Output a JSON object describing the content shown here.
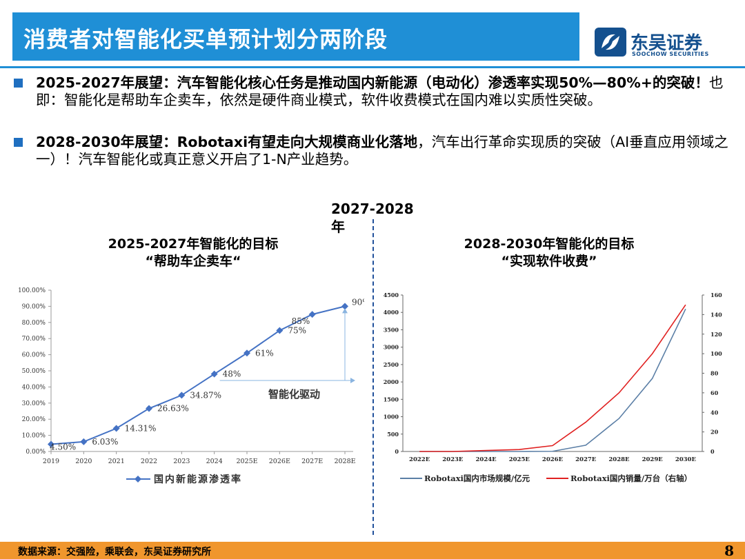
{
  "header": {
    "title": "消费者对智能化买单预计划分两阶段",
    "logo_cn": "东吴证券",
    "logo_en": "SOOCHOW SECURITIES"
  },
  "bullets": [
    {
      "bold": "2025-2027年展望：汽车智能化核心任务是推动国内新能源（电动化）渗透率实现50%—80%+的突破！",
      "normal": "也即：智能化是帮助车企卖车，依然是硬件商业模式，软件收费模式在国内难以实质性突破。"
    },
    {
      "bold": "2028-2030年展望：Robotaxi有望走向大规模商业化落地",
      "normal": "，汽车出行革命实现质的突破（AI垂直应用领域之一）！汽车智能化或真正意义开启了1-N产业趋势。"
    }
  ],
  "divider_label": "2027-2028年",
  "left_chart_title": {
    "line1": "2025-2027年智能化的目标",
    "line2": "“帮助车企卖车“"
  },
  "right_chart_title": {
    "line1": "2028-2030年智能化的目标",
    "line2": "“实现软件收费”"
  },
  "chart_data": [
    {
      "type": "line",
      "categories": [
        "2019",
        "2020",
        "2021",
        "2022",
        "2023",
        "2024",
        "2025E",
        "2026E",
        "2027E",
        "2028E"
      ],
      "series": [
        {
          "name": "国内新能源渗透率",
          "values": [
            4.5,
            6.03,
            14.31,
            26.63,
            34.87,
            48,
            61,
            75,
            85,
            90
          ],
          "color": "#4472c4"
        }
      ],
      "data_labels": [
        "4.50%",
        "6.03%",
        "14.31%",
        "26.63%",
        "34.87%",
        "48%",
        "61%",
        "75%",
        "85%",
        "90%"
      ],
      "y_ticks": [
        "0.00%",
        "10.00%",
        "20.00%",
        "30.00%",
        "40.00%",
        "50.00%",
        "60.00%",
        "70.00%",
        "80.00%",
        "90.00%",
        "100.00%"
      ],
      "ylim": [
        0,
        100
      ],
      "annotation": "智能化驱动",
      "legend": "bottom"
    },
    {
      "type": "line",
      "categories": [
        "2022E",
        "2023E",
        "2024E",
        "2025E",
        "2026E",
        "2027E",
        "2028E",
        "2029E",
        "2030E"
      ],
      "series": [
        {
          "name": "Robotaxi国内市场规模/亿元",
          "values": [
            0,
            0,
            0,
            0,
            5,
            180,
            950,
            2100,
            4100
          ],
          "axis": "left",
          "color": "#5b7fa6"
        },
        {
          "name": "Robotaxi国内销量/万台（右轴）",
          "values": [
            0,
            0,
            1,
            2,
            6,
            30,
            60,
            100,
            150
          ],
          "axis": "right",
          "color": "#e02020"
        }
      ],
      "y_ticks": [
        "0",
        "500",
        "1000",
        "1500",
        "2000",
        "2500",
        "3000",
        "3500",
        "4000",
        "4500"
      ],
      "y2_ticks": [
        "0",
        "20",
        "40",
        "60",
        "80",
        "100",
        "120",
        "140",
        "160"
      ],
      "ylim": [
        0,
        4500
      ],
      "y2lim": [
        0,
        160
      ],
      "legend": "bottom"
    }
  ],
  "footer": {
    "source": "数据来源：交强险，乘联会，东吴证券研究所",
    "page": "8"
  }
}
